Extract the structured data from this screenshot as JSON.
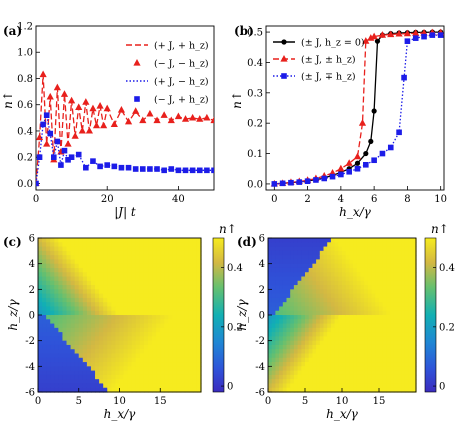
{
  "chart_data": [
    {
      "panel": "(a)",
      "type": "line",
      "xlabel": "|J|t",
      "ylabel": "n↑",
      "xlim": [
        0,
        50
      ],
      "ylim": [
        -0.05,
        1.2
      ],
      "xticks": [
        "0",
        "20",
        "40"
      ],
      "yticks": [
        "0.0",
        "0.2",
        "0.4",
        "0.6",
        "0.8",
        "1.0",
        "1.2"
      ],
      "xtick_values": [
        0,
        20,
        40
      ],
      "ytick_values": [
        0,
        0.2,
        0.4,
        0.6,
        0.8,
        1.0,
        1.2
      ],
      "legend_position": "top-right",
      "series": [
        {
          "name": "(+ J, + h_z)",
          "style": "dashed",
          "color": "#e8201c",
          "marker": "none",
          "x": [
            0,
            1,
            2,
            3,
            4,
            5,
            6,
            7,
            8,
            9,
            10,
            11,
            12,
            13,
            14,
            15,
            16,
            17,
            18,
            19,
            20,
            22,
            24,
            26,
            28,
            30,
            32,
            34,
            36,
            38,
            40,
            42,
            44,
            46,
            48,
            50
          ],
          "y": [
            0.0,
            0.35,
            0.83,
            0.3,
            0.66,
            0.18,
            0.73,
            0.24,
            0.68,
            0.3,
            0.63,
            0.36,
            0.58,
            0.4,
            0.62,
            0.4,
            0.57,
            0.44,
            0.59,
            0.44,
            0.57,
            0.45,
            0.56,
            0.47,
            0.55,
            0.48,
            0.53,
            0.48,
            0.52,
            0.48,
            0.51,
            0.49,
            0.5,
            0.49,
            0.5,
            0.48
          ]
        },
        {
          "name": "(− J, − h_z)",
          "style": "none",
          "color": "#e8201c",
          "marker": "triangle",
          "x": [
            0,
            1,
            2,
            3,
            4,
            5,
            6,
            7,
            8,
            9,
            10,
            11,
            12,
            13,
            14,
            15,
            16,
            17,
            18,
            19,
            20,
            22,
            24,
            26,
            28,
            30,
            32,
            34,
            36,
            38,
            40,
            42,
            44,
            46,
            48,
            50
          ],
          "y": [
            0.0,
            0.35,
            0.83,
            0.3,
            0.66,
            0.18,
            0.73,
            0.24,
            0.68,
            0.3,
            0.63,
            0.36,
            0.58,
            0.4,
            0.62,
            0.4,
            0.57,
            0.44,
            0.59,
            0.44,
            0.57,
            0.45,
            0.56,
            0.47,
            0.55,
            0.48,
            0.53,
            0.48,
            0.52,
            0.48,
            0.51,
            0.49,
            0.5,
            0.49,
            0.5,
            0.48
          ]
        },
        {
          "name": "(+ J, − h_z)",
          "style": "dotted",
          "color": "#1c1ce8",
          "marker": "none",
          "x": [
            0,
            1,
            2,
            3,
            4,
            5,
            6,
            7,
            8,
            9,
            10,
            12,
            14,
            16,
            18,
            20,
            22,
            24,
            26,
            28,
            30,
            32,
            34,
            36,
            38,
            40,
            42,
            44,
            46,
            48,
            50
          ],
          "y": [
            0.0,
            0.2,
            0.45,
            0.52,
            0.38,
            0.2,
            0.32,
            0.14,
            0.25,
            0.18,
            0.2,
            0.22,
            0.12,
            0.17,
            0.13,
            0.14,
            0.13,
            0.12,
            0.12,
            0.11,
            0.11,
            0.11,
            0.11,
            0.1,
            0.11,
            0.1,
            0.1,
            0.1,
            0.1,
            0.1,
            0.1
          ]
        },
        {
          "name": "(− J, + h_z)",
          "style": "none",
          "color": "#1c1ce8",
          "marker": "square",
          "x": [
            0,
            1,
            2,
            3,
            4,
            5,
            6,
            7,
            8,
            9,
            10,
            12,
            14,
            16,
            18,
            20,
            22,
            24,
            26,
            28,
            30,
            32,
            34,
            36,
            38,
            40,
            42,
            44,
            46,
            48,
            50
          ],
          "y": [
            0.0,
            0.2,
            0.45,
            0.52,
            0.38,
            0.2,
            0.32,
            0.14,
            0.25,
            0.18,
            0.2,
            0.22,
            0.12,
            0.17,
            0.13,
            0.14,
            0.13,
            0.12,
            0.12,
            0.11,
            0.11,
            0.11,
            0.11,
            0.1,
            0.11,
            0.1,
            0.1,
            0.1,
            0.1,
            0.1,
            0.1
          ]
        }
      ]
    },
    {
      "panel": "(b)",
      "type": "line",
      "xlabel": "h_x/γ",
      "ylabel": "n↑",
      "xlim": [
        -0.5,
        10.2
      ],
      "ylim": [
        -0.02,
        0.52
      ],
      "xticks": [
        "0",
        "2",
        "4",
        "6",
        "8",
        "10"
      ],
      "yticks": [
        "0.0",
        "0.1",
        "0.2",
        "0.3",
        "0.4",
        "0.5"
      ],
      "xtick_values": [
        0,
        2,
        4,
        6,
        8,
        10
      ],
      "ytick_values": [
        0,
        0.1,
        0.2,
        0.3,
        0.4,
        0.5
      ],
      "legend_position": "top-left",
      "series": [
        {
          "name": "(± J, h_z = 0)",
          "style": "solid",
          "color": "#000000",
          "marker": "circle",
          "x": [
            0,
            0.5,
            1,
            1.5,
            2,
            2.5,
            3,
            3.5,
            4,
            4.5,
            5,
            5.5,
            5.8,
            6.0,
            6.2,
            6.5,
            7,
            7.5,
            8,
            8.5,
            9,
            9.5,
            10
          ],
          "y": [
            0.0,
            0.002,
            0.004,
            0.007,
            0.01,
            0.014,
            0.02,
            0.028,
            0.038,
            0.05,
            0.068,
            0.1,
            0.14,
            0.24,
            0.47,
            0.49,
            0.495,
            0.497,
            0.498,
            0.499,
            0.499,
            0.5,
            0.5
          ]
        },
        {
          "name": "(± J, ± h_z)",
          "style": "dashed",
          "color": "#e8201c",
          "marker": "triangle",
          "x": [
            0,
            0.5,
            1,
            1.5,
            2,
            2.5,
            3,
            3.5,
            4,
            4.5,
            5,
            5.3,
            5.5,
            5.8,
            6,
            6.5,
            7,
            7.5,
            8,
            8.5,
            9,
            9.5,
            10
          ],
          "y": [
            0.0,
            0.002,
            0.005,
            0.008,
            0.012,
            0.018,
            0.026,
            0.036,
            0.05,
            0.068,
            0.09,
            0.2,
            0.47,
            0.48,
            0.485,
            0.49,
            0.492,
            0.494,
            0.495,
            0.496,
            0.497,
            0.498,
            0.498
          ]
        },
        {
          "name": "(± J, ∓ h_z)",
          "style": "dotted",
          "color": "#1c1ce8",
          "marker": "square",
          "x": [
            0,
            0.5,
            1,
            1.5,
            2,
            2.5,
            3,
            3.5,
            4,
            4.5,
            5,
            5.5,
            6,
            6.5,
            7,
            7.5,
            7.8,
            8,
            8.5,
            9,
            9.5,
            10
          ],
          "y": [
            0.0,
            0.002,
            0.004,
            0.006,
            0.009,
            0.013,
            0.018,
            0.024,
            0.031,
            0.04,
            0.05,
            0.063,
            0.078,
            0.1,
            0.12,
            0.17,
            0.35,
            0.47,
            0.48,
            0.485,
            0.49,
            0.49
          ]
        }
      ]
    },
    {
      "panel": "(c)",
      "type": "heatmap",
      "xlabel": "h_x/γ",
      "ylabel": "h_z/γ",
      "xlim": [
        0,
        20
      ],
      "ylim": [
        -6,
        6
      ],
      "xticks": [
        "0",
        "5",
        "10",
        "15"
      ],
      "yticks": [
        "-6",
        "-4",
        "-2",
        "0",
        "2",
        "4",
        "6"
      ],
      "xtick_values": [
        0,
        5,
        10,
        15
      ],
      "ytick_values": [
        -6,
        -4,
        -2,
        0,
        2,
        4,
        6
      ],
      "colorbar_label": "n↑",
      "colorbar_ticks": [
        "0",
        "0.2",
        "0.4"
      ],
      "colorbar_tick_values": [
        0,
        0.2,
        0.4
      ],
      "zlim": [
        -0.02,
        0.5
      ],
      "boundary_slope": -1,
      "description_values": "low region (n↑≈0) where h_z > -0.75 h_x for small h_x; high region (n↑≈0.5) beyond the boundary"
    },
    {
      "panel": "(d)",
      "type": "heatmap",
      "xlabel": "h_x/γ",
      "ylabel": "h_z/γ",
      "xlim": [
        0,
        20
      ],
      "ylim": [
        -6,
        6
      ],
      "xticks": [
        "0",
        "5",
        "10",
        "15"
      ],
      "yticks": [
        "-6",
        "-4",
        "-2",
        "0",
        "2",
        "4",
        "6"
      ],
      "xtick_values": [
        0,
        5,
        10,
        15
      ],
      "ytick_values": [
        -6,
        -4,
        -2,
        0,
        2,
        4,
        6
      ],
      "colorbar_label": "n↑",
      "colorbar_ticks": [
        "0",
        "0.2",
        "0.4"
      ],
      "colorbar_tick_values": [
        0,
        0.2,
        0.4
      ],
      "zlim": [
        -0.02,
        0.5
      ],
      "boundary_slope": 1,
      "description_values": "mirror of (c) in h_z"
    }
  ],
  "colors": {
    "red": "#e8201c",
    "blue": "#1c1ce8",
    "black": "#000000"
  }
}
